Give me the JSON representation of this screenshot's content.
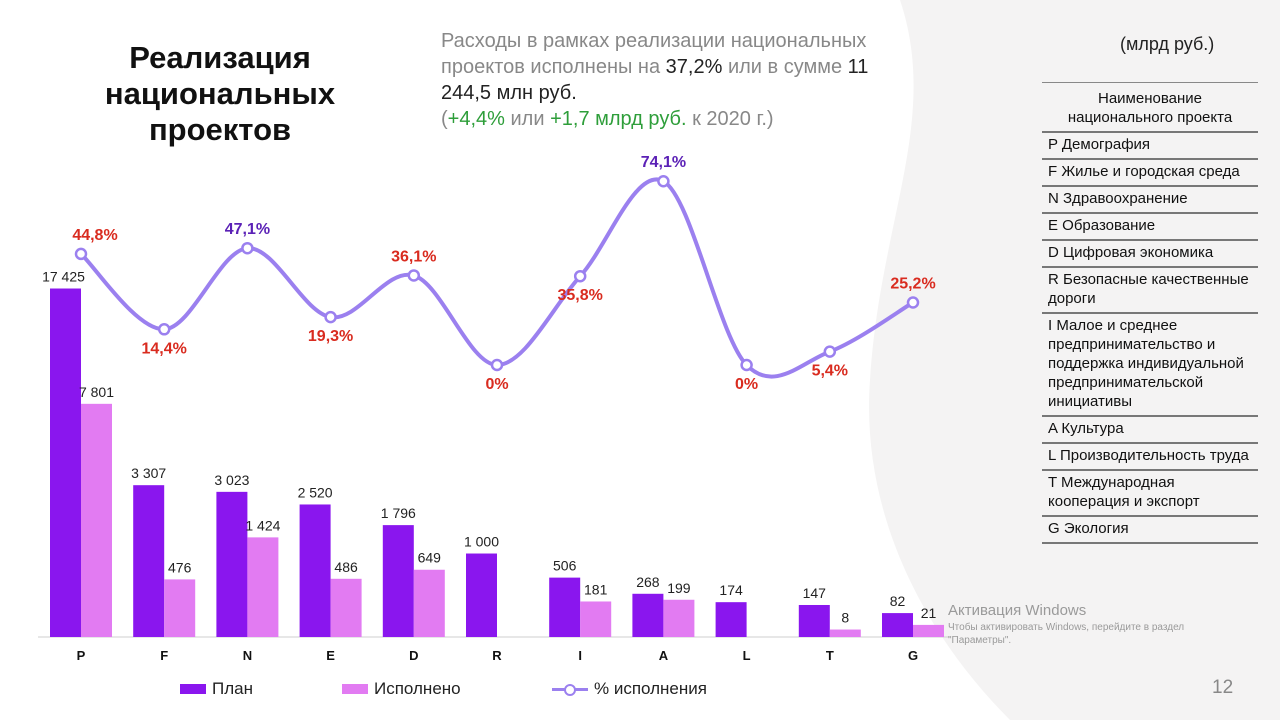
{
  "slide": {
    "title": "Реализация национальных проектов",
    "subtitle_1": "Расходы в рамках реализации национальных проектов исполнены на",
    "subtitle_pct": "37,2%",
    "subtitle_2": "или в сумме",
    "subtitle_amount": "11 244,5 млн руб.",
    "subtitle_3": "(",
    "subtitle_delta_pct": "+4,4%",
    "subtitle_4": "или",
    "subtitle_delta_abs": "+1,7 млрд руб.",
    "subtitle_5": "к 2020 г.)",
    "unit": "(млрд руб.)",
    "slide_number": "12"
  },
  "watermark": {
    "title": "Активация Windows",
    "text": "Чтобы активировать Windows, перейдите в раздел \"Параметры\"."
  },
  "legend": {
    "plan": "План",
    "done": "Исполнено",
    "pct": "% исполнения"
  },
  "table": {
    "header": "Наименование национального проекта",
    "rows": [
      "P  Демография",
      "F  Жилье и городская среда",
      "N  Здравоохранение",
      "E  Образование",
      "D  Цифровая экономика",
      "R Безопасные качественные дороги",
      "I  Малое и среднее предпринимательство и поддержка индивидуальной предпринимательской инициативы",
      "A  Культура",
      "L  Производительность труда",
      "T  Международная кооперация и экспорт",
      "G  Экология"
    ]
  },
  "colors": {
    "plan": "#8a16ee",
    "done": "#e27bf2",
    "line": "#9b80ef",
    "pct_red": "#d92b1f",
    "pct_purple": "#5b21b6"
  },
  "chart_data": {
    "type": "bar",
    "categories": [
      "P",
      "F",
      "N",
      "E",
      "D",
      "R",
      "I",
      "A",
      "L",
      "T",
      "G"
    ],
    "series": [
      {
        "name": "План",
        "values": [
          17425,
          3307,
          3023,
          2520,
          1796,
          1000,
          506,
          268,
          174,
          147,
          82
        ],
        "labels": [
          "17 425",
          "3 307",
          "3 023",
          "2 520",
          "1 796",
          "1 000",
          "506",
          "268",
          "174",
          "147",
          "82"
        ]
      },
      {
        "name": "Исполнено",
        "values": [
          7801,
          476,
          1424,
          486,
          649,
          0,
          181,
          199,
          0,
          8,
          21
        ],
        "labels": [
          "7 801",
          "476",
          "1 424",
          "486",
          "649",
          "",
          "181",
          "199",
          "",
          "8",
          "21"
        ]
      },
      {
        "name": "% исполнения",
        "type": "line",
        "values": [
          44.8,
          14.4,
          47.1,
          19.3,
          36.1,
          0,
          35.8,
          74.1,
          0,
          5.4,
          25.2
        ],
        "labels": [
          "44,8%",
          "14,4%",
          "47,1%",
          "19,3%",
          "36,1%",
          "0%",
          "35,8%",
          "74,1%",
          "0%",
          "5,4%",
          "25,2%"
        ],
        "label_colors": [
          "red",
          "red",
          "purple",
          "red",
          "red",
          "red",
          "red",
          "purple",
          "red",
          "red",
          "red"
        ]
      }
    ],
    "y_scale": "broken, non-linear",
    "grid": false,
    "legend_position": "bottom"
  }
}
